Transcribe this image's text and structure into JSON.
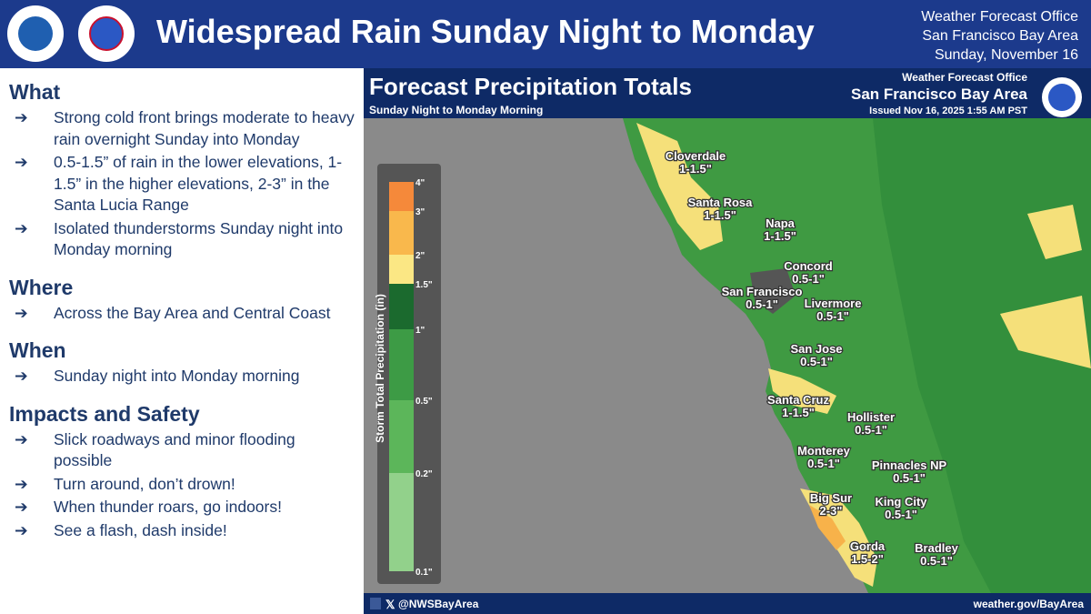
{
  "header": {
    "title": "Widespread Rain Sunday Night to Monday",
    "office": "Weather Forecast Office",
    "area": "San Francisco Bay Area",
    "date": "Sunday, November 16"
  },
  "sections": [
    {
      "heading": "What",
      "bullets": [
        "Strong cold front brings moderate to heavy rain overnight Sunday into Monday",
        "0.5-1.5” of rain in the lower elevations, 1-1.5” in the higher elevations, 2-3” in the Santa Lucia Range",
        "Isolated thunderstorms Sunday night into Monday morning"
      ]
    },
    {
      "heading": "Where",
      "bullets": [
        "Across the Bay Area and Central Coast"
      ]
    },
    {
      "heading": "When",
      "bullets": [
        "Sunday night into Monday morning"
      ]
    },
    {
      "heading": "Impacts and Safety",
      "bullets": [
        "Slick roadways and minor flooding possible",
        "Turn around, don’t drown!",
        "When thunder roars, go indoors!",
        "See a flash, dash inside!"
      ]
    }
  ],
  "map": {
    "title": "Forecast Precipitation Totals",
    "subtitle": "Sunday Night to Monday Morning",
    "office": "Weather Forecast Office",
    "area": "San Francisco Bay Area",
    "issued": "Issued Nov 16, 2025 1:55 AM PST",
    "legend": {
      "label": "Storm Total Precipitation (in)",
      "ticks": [
        "4\"",
        "3\"",
        "2\"",
        "1.5\"",
        "1\"",
        "0.5\"",
        "0.2\"",
        "0.1\""
      ]
    },
    "places": [
      {
        "name": "Cloverdale",
        "amount": "1-1.5\""
      },
      {
        "name": "Santa Rosa",
        "amount": "1-1.5\""
      },
      {
        "name": "Napa",
        "amount": "1-1.5\""
      },
      {
        "name": "Concord",
        "amount": "0.5-1\""
      },
      {
        "name": "San Francisco",
        "amount": "0.5-1\""
      },
      {
        "name": "Livermore",
        "amount": "0.5-1\""
      },
      {
        "name": "San Jose",
        "amount": "0.5-1\""
      },
      {
        "name": "Santa Cruz",
        "amount": "1-1.5\""
      },
      {
        "name": "Hollister",
        "amount": "0.5-1\""
      },
      {
        "name": "Monterey",
        "amount": "0.5-1\""
      },
      {
        "name": "Pinnacles NP",
        "amount": "0.5-1\""
      },
      {
        "name": "Big Sur",
        "amount": "2-3\""
      },
      {
        "name": "King City",
        "amount": "0.5-1\""
      },
      {
        "name": "Gorda",
        "amount": "1.5-2\""
      },
      {
        "name": "Bradley",
        "amount": "0.5-1\""
      }
    ],
    "handle": "@NWSBayArea",
    "url": "weather.gov/BayArea"
  }
}
